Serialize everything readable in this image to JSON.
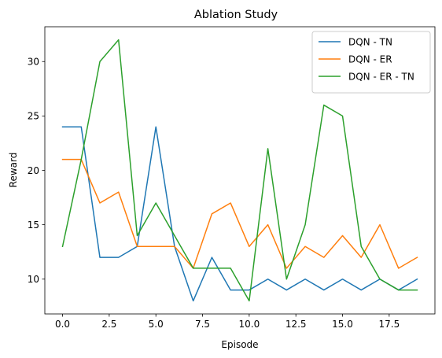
{
  "chart_data": {
    "type": "line",
    "title": "Ablation Study",
    "xlabel": "Episode",
    "ylabel": "Reward",
    "x": [
      0,
      1,
      2,
      3,
      4,
      5,
      6,
      7,
      8,
      9,
      10,
      11,
      12,
      13,
      14,
      15,
      16,
      17,
      18,
      19
    ],
    "xlim": [
      -0.95,
      19.95
    ],
    "ylim": [
      6.8,
      33.2
    ],
    "x_ticks": [
      0.0,
      2.5,
      5.0,
      7.5,
      10.0,
      12.5,
      15.0,
      17.5
    ],
    "x_tick_labels": [
      "0.0",
      "2.5",
      "5.0",
      "7.5",
      "10.0",
      "12.5",
      "15.0",
      "17.5"
    ],
    "y_ticks": [
      10,
      15,
      20,
      25,
      30
    ],
    "y_tick_labels": [
      "10",
      "15",
      "20",
      "25",
      "30"
    ],
    "grid": false,
    "legend_position": "top-right",
    "series": [
      {
        "name": "DQN - TN",
        "color": "#1f77b4",
        "values": [
          24,
          24,
          12,
          12,
          13,
          24,
          13,
          8,
          12,
          9,
          9,
          10,
          9,
          10,
          9,
          10,
          9,
          10,
          9,
          10
        ]
      },
      {
        "name": "DQN - ER",
        "color": "#ff7f0e",
        "values": [
          21,
          21,
          17,
          18,
          13,
          13,
          13,
          11,
          16,
          17,
          13,
          15,
          11,
          13,
          12,
          14,
          12,
          15,
          11,
          12
        ]
      },
      {
        "name": "DQN - ER - TN",
        "color": "#2ca02c",
        "values": [
          13,
          21,
          30,
          32,
          14,
          17,
          14,
          11,
          11,
          11,
          8,
          22,
          10,
          15,
          26,
          25,
          13,
          10,
          9,
          9
        ]
      }
    ]
  }
}
